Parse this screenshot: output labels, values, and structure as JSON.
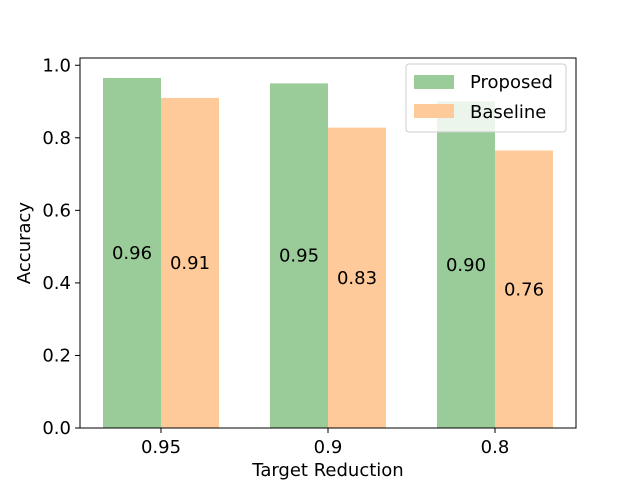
{
  "chart_data": {
    "type": "bar",
    "categories": [
      "0.95",
      "0.9",
      "0.8"
    ],
    "series": [
      {
        "name": "Proposed",
        "values": [
          0.965,
          0.95,
          0.9
        ],
        "labels": [
          "0.96",
          "0.95",
          "0.90"
        ],
        "color": "#99CC99"
      },
      {
        "name": "Baseline",
        "values": [
          0.91,
          0.828,
          0.765
        ],
        "labels": [
          "0.91",
          "0.83",
          "0.76"
        ],
        "color": "#FFCA99"
      }
    ],
    "xlabel": "Target Reduction",
    "ylabel": "Accuracy",
    "ylim": [
      0,
      1.02
    ],
    "yticks": [
      "0.0",
      "0.2",
      "0.4",
      "0.6",
      "0.8",
      "1.0"
    ],
    "legend_position": "top-right",
    "grid": false
  }
}
